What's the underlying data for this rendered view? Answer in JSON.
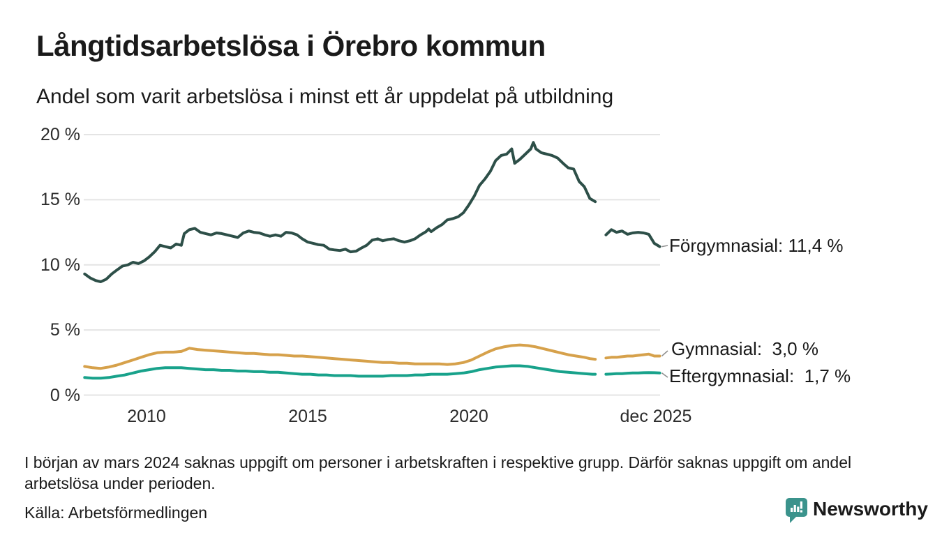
{
  "header": {
    "title": "Långtidsarbetslösa i Örebro kommun",
    "subtitle": "Andel som varit arbetslösa i minst ett år uppdelat på utbildning"
  },
  "footer": {
    "note": "I början av mars 2024 saknas uppgift om personer i arbetskraften i respektive grupp. Därför saknas uppgift om andel arbetslösa under perioden.",
    "source": "Källa: Arbetsförmedlingen",
    "brand": "Newsworthy",
    "brand_color": "#3b938c"
  },
  "chart_data": {
    "type": "line",
    "title": "Långtidsarbetslösa i Örebro kommun",
    "xlabel": "",
    "ylabel": "",
    "ylim": [
      0,
      20
    ],
    "x_range": [
      2008.08,
      2025.92
    ],
    "grid": "horizontal",
    "gridline_color": "#e4e4e4",
    "legend_position": "right-end-labels",
    "gap_note": "values missing around March 2024 for all series",
    "yticks": [
      {
        "value": 0,
        "label": "0 %"
      },
      {
        "value": 5,
        "label": "5 %"
      },
      {
        "value": 10,
        "label": "10 %"
      },
      {
        "value": 15,
        "label": "15 %"
      },
      {
        "value": 20,
        "label": "20 %"
      }
    ],
    "xticks": [
      {
        "x": 2010,
        "label": "2010"
      },
      {
        "x": 2015,
        "label": "2015"
      },
      {
        "x": 2020,
        "label": "2020"
      },
      {
        "x": 2025.8,
        "label": "dec 2025"
      }
    ],
    "series": [
      {
        "name": "Förgymnasial",
        "color": "#2d4f48",
        "latest_value": "11,4 %",
        "end_label": "Förgymnasial: 11,4 %",
        "points": [
          [
            2008.08,
            9.3
          ],
          [
            2008.25,
            9.0
          ],
          [
            2008.42,
            8.8
          ],
          [
            2008.58,
            8.7
          ],
          [
            2008.75,
            8.9
          ],
          [
            2008.92,
            9.3
          ],
          [
            2009.08,
            9.6
          ],
          [
            2009.25,
            9.9
          ],
          [
            2009.42,
            10.0
          ],
          [
            2009.58,
            10.2
          ],
          [
            2009.75,
            10.1
          ],
          [
            2009.92,
            10.3
          ],
          [
            2010.08,
            10.6
          ],
          [
            2010.25,
            11.0
          ],
          [
            2010.42,
            11.5
          ],
          [
            2010.58,
            11.4
          ],
          [
            2010.75,
            11.3
          ],
          [
            2010.92,
            11.6
          ],
          [
            2011.08,
            11.5
          ],
          [
            2011.17,
            12.4
          ],
          [
            2011.33,
            12.7
          ],
          [
            2011.5,
            12.8
          ],
          [
            2011.67,
            12.5
          ],
          [
            2011.83,
            12.4
          ],
          [
            2012.0,
            12.3
          ],
          [
            2012.17,
            12.45
          ],
          [
            2012.33,
            12.4
          ],
          [
            2012.5,
            12.3
          ],
          [
            2012.67,
            12.2
          ],
          [
            2012.83,
            12.1
          ],
          [
            2013.0,
            12.45
          ],
          [
            2013.17,
            12.6
          ],
          [
            2013.33,
            12.5
          ],
          [
            2013.5,
            12.45
          ],
          [
            2013.67,
            12.3
          ],
          [
            2013.83,
            12.2
          ],
          [
            2014.0,
            12.3
          ],
          [
            2014.17,
            12.2
          ],
          [
            2014.33,
            12.5
          ],
          [
            2014.5,
            12.45
          ],
          [
            2014.67,
            12.3
          ],
          [
            2014.83,
            12.0
          ],
          [
            2015.0,
            11.75
          ],
          [
            2015.17,
            11.65
          ],
          [
            2015.33,
            11.55
          ],
          [
            2015.5,
            11.5
          ],
          [
            2015.67,
            11.2
          ],
          [
            2015.83,
            11.15
          ],
          [
            2016.0,
            11.1
          ],
          [
            2016.17,
            11.2
          ],
          [
            2016.33,
            11.0
          ],
          [
            2016.5,
            11.05
          ],
          [
            2016.67,
            11.3
          ],
          [
            2016.83,
            11.5
          ],
          [
            2017.0,
            11.9
          ],
          [
            2017.17,
            12.0
          ],
          [
            2017.33,
            11.85
          ],
          [
            2017.5,
            11.95
          ],
          [
            2017.67,
            12.0
          ],
          [
            2017.83,
            11.85
          ],
          [
            2018.0,
            11.75
          ],
          [
            2018.17,
            11.85
          ],
          [
            2018.33,
            12.0
          ],
          [
            2018.5,
            12.3
          ],
          [
            2018.67,
            12.55
          ],
          [
            2018.75,
            12.75
          ],
          [
            2018.83,
            12.55
          ],
          [
            2019.0,
            12.85
          ],
          [
            2019.17,
            13.1
          ],
          [
            2019.33,
            13.45
          ],
          [
            2019.5,
            13.55
          ],
          [
            2019.67,
            13.7
          ],
          [
            2019.83,
            14.0
          ],
          [
            2020.0,
            14.6
          ],
          [
            2020.17,
            15.3
          ],
          [
            2020.33,
            16.1
          ],
          [
            2020.5,
            16.6
          ],
          [
            2020.67,
            17.2
          ],
          [
            2020.83,
            18.0
          ],
          [
            2021.0,
            18.4
          ],
          [
            2021.17,
            18.5
          ],
          [
            2021.33,
            18.9
          ],
          [
            2021.42,
            17.8
          ],
          [
            2021.58,
            18.1
          ],
          [
            2021.75,
            18.5
          ],
          [
            2021.92,
            18.9
          ],
          [
            2022.0,
            19.4
          ],
          [
            2022.08,
            18.9
          ],
          [
            2022.25,
            18.6
          ],
          [
            2022.42,
            18.5
          ],
          [
            2022.58,
            18.4
          ],
          [
            2022.75,
            18.2
          ],
          [
            2022.92,
            17.8
          ],
          [
            2023.08,
            17.45
          ],
          [
            2023.25,
            17.35
          ],
          [
            2023.42,
            16.4
          ],
          [
            2023.58,
            16.0
          ],
          [
            2023.75,
            15.1
          ],
          [
            2023.92,
            14.85
          ],
          [
            2024.08,
            null
          ],
          [
            2024.25,
            12.3
          ],
          [
            2024.42,
            12.7
          ],
          [
            2024.58,
            12.5
          ],
          [
            2024.75,
            12.6
          ],
          [
            2024.92,
            12.35
          ],
          [
            2025.08,
            12.45
          ],
          [
            2025.25,
            12.5
          ],
          [
            2025.42,
            12.45
          ],
          [
            2025.58,
            12.35
          ],
          [
            2025.75,
            11.65
          ],
          [
            2025.92,
            11.4
          ]
        ]
      },
      {
        "name": "Gymnasial",
        "color": "#d6a14b",
        "latest_value": "3,0 %",
        "end_label": "Gymnasial:  3,0 %",
        "points": [
          [
            2008.08,
            2.2
          ],
          [
            2008.33,
            2.1
          ],
          [
            2008.58,
            2.05
          ],
          [
            2008.83,
            2.15
          ],
          [
            2009.08,
            2.3
          ],
          [
            2009.33,
            2.5
          ],
          [
            2009.58,
            2.7
          ],
          [
            2009.83,
            2.9
          ],
          [
            2010.08,
            3.1
          ],
          [
            2010.33,
            3.25
          ],
          [
            2010.58,
            3.3
          ],
          [
            2010.83,
            3.3
          ],
          [
            2011.08,
            3.35
          ],
          [
            2011.33,
            3.6
          ],
          [
            2011.58,
            3.5
          ],
          [
            2011.83,
            3.45
          ],
          [
            2012.08,
            3.4
          ],
          [
            2012.33,
            3.35
          ],
          [
            2012.58,
            3.3
          ],
          [
            2012.83,
            3.25
          ],
          [
            2013.08,
            3.2
          ],
          [
            2013.33,
            3.2
          ],
          [
            2013.58,
            3.15
          ],
          [
            2013.83,
            3.1
          ],
          [
            2014.08,
            3.1
          ],
          [
            2014.33,
            3.05
          ],
          [
            2014.58,
            3.0
          ],
          [
            2014.83,
            3.0
          ],
          [
            2015.08,
            2.95
          ],
          [
            2015.33,
            2.9
          ],
          [
            2015.58,
            2.85
          ],
          [
            2015.83,
            2.8
          ],
          [
            2016.08,
            2.75
          ],
          [
            2016.33,
            2.7
          ],
          [
            2016.58,
            2.65
          ],
          [
            2016.83,
            2.6
          ],
          [
            2017.08,
            2.55
          ],
          [
            2017.33,
            2.5
          ],
          [
            2017.58,
            2.5
          ],
          [
            2017.83,
            2.45
          ],
          [
            2018.08,
            2.45
          ],
          [
            2018.33,
            2.4
          ],
          [
            2018.58,
            2.4
          ],
          [
            2018.83,
            2.4
          ],
          [
            2019.08,
            2.4
          ],
          [
            2019.33,
            2.35
          ],
          [
            2019.58,
            2.4
          ],
          [
            2019.83,
            2.5
          ],
          [
            2020.08,
            2.7
          ],
          [
            2020.33,
            3.0
          ],
          [
            2020.58,
            3.3
          ],
          [
            2020.83,
            3.55
          ],
          [
            2021.08,
            3.7
          ],
          [
            2021.33,
            3.8
          ],
          [
            2021.58,
            3.85
          ],
          [
            2021.83,
            3.8
          ],
          [
            2022.08,
            3.7
          ],
          [
            2022.33,
            3.55
          ],
          [
            2022.58,
            3.4
          ],
          [
            2022.83,
            3.25
          ],
          [
            2023.08,
            3.1
          ],
          [
            2023.33,
            3.0
          ],
          [
            2023.58,
            2.9
          ],
          [
            2023.75,
            2.8
          ],
          [
            2023.92,
            2.75
          ],
          [
            2024.08,
            null
          ],
          [
            2024.25,
            2.85
          ],
          [
            2024.42,
            2.9
          ],
          [
            2024.58,
            2.9
          ],
          [
            2024.75,
            2.95
          ],
          [
            2024.92,
            3.0
          ],
          [
            2025.08,
            3.0
          ],
          [
            2025.25,
            3.05
          ],
          [
            2025.42,
            3.1
          ],
          [
            2025.58,
            3.15
          ],
          [
            2025.75,
            3.0
          ],
          [
            2025.92,
            3.0
          ]
        ]
      },
      {
        "name": "Eftergymnasial",
        "color": "#18a28b",
        "latest_value": "1,7 %",
        "end_label": "Eftergymnasial:  1,7 %",
        "points": [
          [
            2008.08,
            1.35
          ],
          [
            2008.33,
            1.3
          ],
          [
            2008.58,
            1.3
          ],
          [
            2008.83,
            1.35
          ],
          [
            2009.08,
            1.45
          ],
          [
            2009.33,
            1.55
          ],
          [
            2009.58,
            1.7
          ],
          [
            2009.83,
            1.85
          ],
          [
            2010.08,
            1.95
          ],
          [
            2010.33,
            2.05
          ],
          [
            2010.58,
            2.1
          ],
          [
            2010.83,
            2.1
          ],
          [
            2011.08,
            2.1
          ],
          [
            2011.33,
            2.05
          ],
          [
            2011.58,
            2.0
          ],
          [
            2011.83,
            1.95
          ],
          [
            2012.08,
            1.95
          ],
          [
            2012.33,
            1.9
          ],
          [
            2012.58,
            1.9
          ],
          [
            2012.83,
            1.85
          ],
          [
            2013.08,
            1.85
          ],
          [
            2013.33,
            1.8
          ],
          [
            2013.58,
            1.8
          ],
          [
            2013.83,
            1.75
          ],
          [
            2014.08,
            1.75
          ],
          [
            2014.33,
            1.7
          ],
          [
            2014.58,
            1.65
          ],
          [
            2014.83,
            1.6
          ],
          [
            2015.08,
            1.6
          ],
          [
            2015.33,
            1.55
          ],
          [
            2015.58,
            1.55
          ],
          [
            2015.83,
            1.5
          ],
          [
            2016.08,
            1.5
          ],
          [
            2016.33,
            1.5
          ],
          [
            2016.58,
            1.45
          ],
          [
            2016.83,
            1.45
          ],
          [
            2017.08,
            1.45
          ],
          [
            2017.33,
            1.45
          ],
          [
            2017.58,
            1.5
          ],
          [
            2017.83,
            1.5
          ],
          [
            2018.08,
            1.5
          ],
          [
            2018.33,
            1.55
          ],
          [
            2018.58,
            1.55
          ],
          [
            2018.83,
            1.6
          ],
          [
            2019.08,
            1.6
          ],
          [
            2019.33,
            1.6
          ],
          [
            2019.58,
            1.65
          ],
          [
            2019.83,
            1.7
          ],
          [
            2020.08,
            1.8
          ],
          [
            2020.33,
            1.95
          ],
          [
            2020.58,
            2.05
          ],
          [
            2020.83,
            2.15
          ],
          [
            2021.08,
            2.2
          ],
          [
            2021.33,
            2.25
          ],
          [
            2021.58,
            2.25
          ],
          [
            2021.83,
            2.2
          ],
          [
            2022.08,
            2.1
          ],
          [
            2022.33,
            2.0
          ],
          [
            2022.58,
            1.9
          ],
          [
            2022.83,
            1.8
          ],
          [
            2023.08,
            1.75
          ],
          [
            2023.33,
            1.7
          ],
          [
            2023.58,
            1.65
          ],
          [
            2023.83,
            1.6
          ],
          [
            2023.92,
            1.6
          ],
          [
            2024.08,
            null
          ],
          [
            2024.25,
            1.6
          ],
          [
            2024.42,
            1.62
          ],
          [
            2024.58,
            1.65
          ],
          [
            2024.75,
            1.65
          ],
          [
            2024.92,
            1.68
          ],
          [
            2025.08,
            1.7
          ],
          [
            2025.25,
            1.7
          ],
          [
            2025.42,
            1.72
          ],
          [
            2025.58,
            1.73
          ],
          [
            2025.75,
            1.72
          ],
          [
            2025.92,
            1.7
          ]
        ]
      }
    ]
  }
}
